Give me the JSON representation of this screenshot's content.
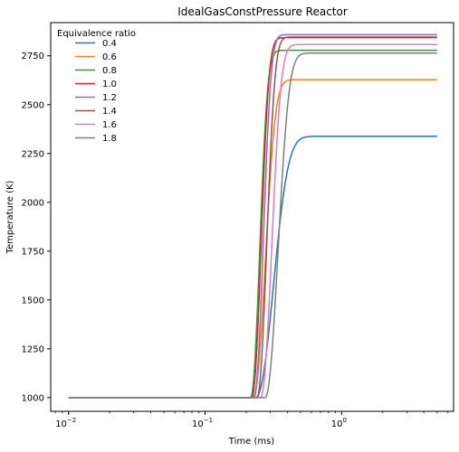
{
  "chart_data": {
    "type": "line",
    "title": "IdealGasConstPressure Reactor",
    "xlabel": "Time (ms)",
    "ylabel": "Temperature (K)",
    "xscale": "log",
    "xlim": [
      0.0074,
      6.6
    ],
    "ylim": [
      930,
      2920
    ],
    "x_ticks": [
      {
        "value": 0.01,
        "label": "10",
        "exp": "−2"
      },
      {
        "value": 0.1,
        "label": "10",
        "exp": "−1"
      },
      {
        "value": 1,
        "label": "10",
        "exp": "0"
      }
    ],
    "y_ticks": [
      1000,
      1250,
      1500,
      1750,
      2000,
      2250,
      2500,
      2750
    ],
    "grid": false,
    "legend": {
      "title": "Equivalence ratio",
      "position": "top-left"
    },
    "initial_temperature": 1000,
    "x_range": [
      0.01,
      5.0
    ],
    "series": [
      {
        "name": "0.4",
        "color": "#1f77b4",
        "ignition_time": 0.235,
        "final_temperature": 2338,
        "rise_scale": 0.38
      },
      {
        "name": "0.6",
        "color": "#ff7f0e",
        "ignition_time": 0.225,
        "final_temperature": 2628,
        "rise_scale": 0.26
      },
      {
        "name": "0.8",
        "color": "#2ca02c",
        "ignition_time": 0.215,
        "final_temperature": 2778,
        "rise_scale": 0.2
      },
      {
        "name": "1.0",
        "color": "#d62728",
        "ignition_time": 0.22,
        "final_temperature": 2843,
        "rise_scale": 0.2
      },
      {
        "name": "1.2",
        "color": "#9467bd",
        "ignition_time": 0.228,
        "final_temperature": 2858,
        "rise_scale": 0.2
      },
      {
        "name": "1.4",
        "color": "#8c564b",
        "ignition_time": 0.24,
        "final_temperature": 2846,
        "rise_scale": 0.21
      },
      {
        "name": "1.6",
        "color": "#e377c2",
        "ignition_time": 0.255,
        "final_temperature": 2808,
        "rise_scale": 0.24
      },
      {
        "name": "1.8",
        "color": "#7f7f7f",
        "ignition_time": 0.275,
        "final_temperature": 2764,
        "rise_scale": 0.28
      }
    ]
  }
}
